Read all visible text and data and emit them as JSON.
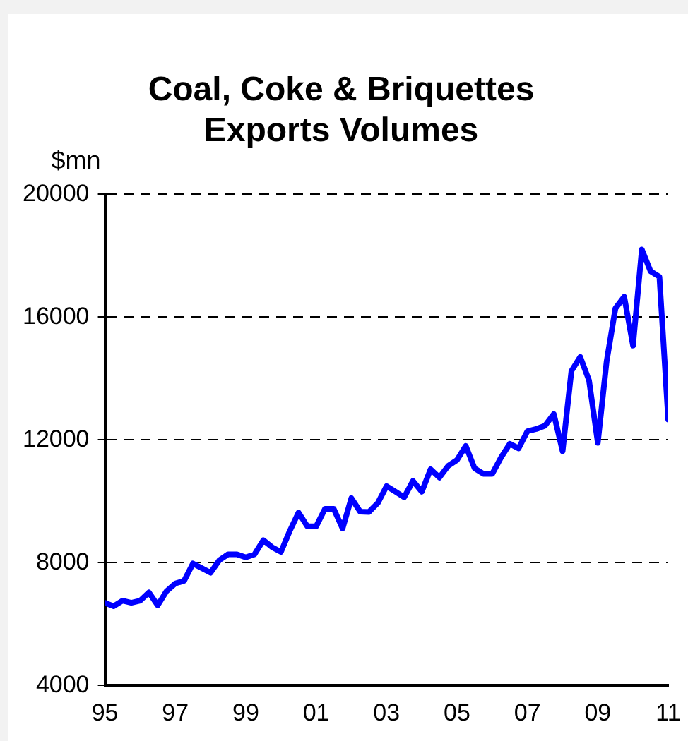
{
  "chart_data": {
    "type": "line",
    "title": "Coal, Coke & Briquettes\nExports Volumes",
    "ylabel": "$mn",
    "x": [
      1995,
      1995.25,
      1995.5,
      1995.75,
      1996,
      1996.25,
      1996.5,
      1996.75,
      1997,
      1997.25,
      1997.5,
      1997.75,
      1998,
      1998.25,
      1998.5,
      1998.75,
      1999,
      1999.25,
      1999.5,
      1999.75,
      2000,
      2000.25,
      2000.5,
      2000.75,
      2001,
      2001.25,
      2001.5,
      2001.75,
      2002,
      2002.25,
      2002.5,
      2002.75,
      2003,
      2003.25,
      2003.5,
      2003.75,
      2004,
      2004.25,
      2004.5,
      2004.75,
      2005,
      2005.25,
      2005.5,
      2005.75,
      2006,
      2006.25,
      2006.5,
      2006.75,
      2007,
      2007.25,
      2007.5,
      2007.75,
      2008,
      2008.25,
      2008.5,
      2008.75,
      2009,
      2009.25,
      2009.5,
      2009.75,
      2010,
      2010.25,
      2010.5,
      2010.75,
      2011
    ],
    "series": [
      {
        "color": "#0000ff",
        "values": [
          6690,
          6580,
          6760,
          6690,
          6760,
          7030,
          6610,
          7070,
          7320,
          7410,
          7970,
          7820,
          7670,
          8080,
          8270,
          8270,
          8170,
          8270,
          8730,
          8500,
          8350,
          9030,
          9630,
          9180,
          9180,
          9750,
          9750,
          9110,
          10100,
          9660,
          9650,
          9940,
          10490,
          10310,
          10130,
          10660,
          10310,
          11040,
          10770,
          11150,
          11340,
          11800,
          11070,
          10890,
          10890,
          11420,
          11870,
          11720,
          12280,
          12350,
          12460,
          12840,
          11630,
          14240,
          14700,
          13940,
          11900,
          14550,
          16280,
          16660,
          15070,
          18200,
          17490,
          17310,
          12660
        ]
      }
    ],
    "xlim": [
      1995,
      2011
    ],
    "xticks": [
      {
        "value": 1995,
        "label": "95"
      },
      {
        "value": 1997,
        "label": "97"
      },
      {
        "value": 1999,
        "label": "99"
      },
      {
        "value": 2001,
        "label": "01"
      },
      {
        "value": 2003,
        "label": "03"
      },
      {
        "value": 2005,
        "label": "05"
      },
      {
        "value": 2007,
        "label": "07"
      },
      {
        "value": 2009,
        "label": "09"
      },
      {
        "value": 2011,
        "label": "11"
      }
    ],
    "ylim": [
      4000,
      20000
    ],
    "yticks": [
      4000,
      8000,
      12000,
      16000,
      20000
    ],
    "grid": "y"
  }
}
